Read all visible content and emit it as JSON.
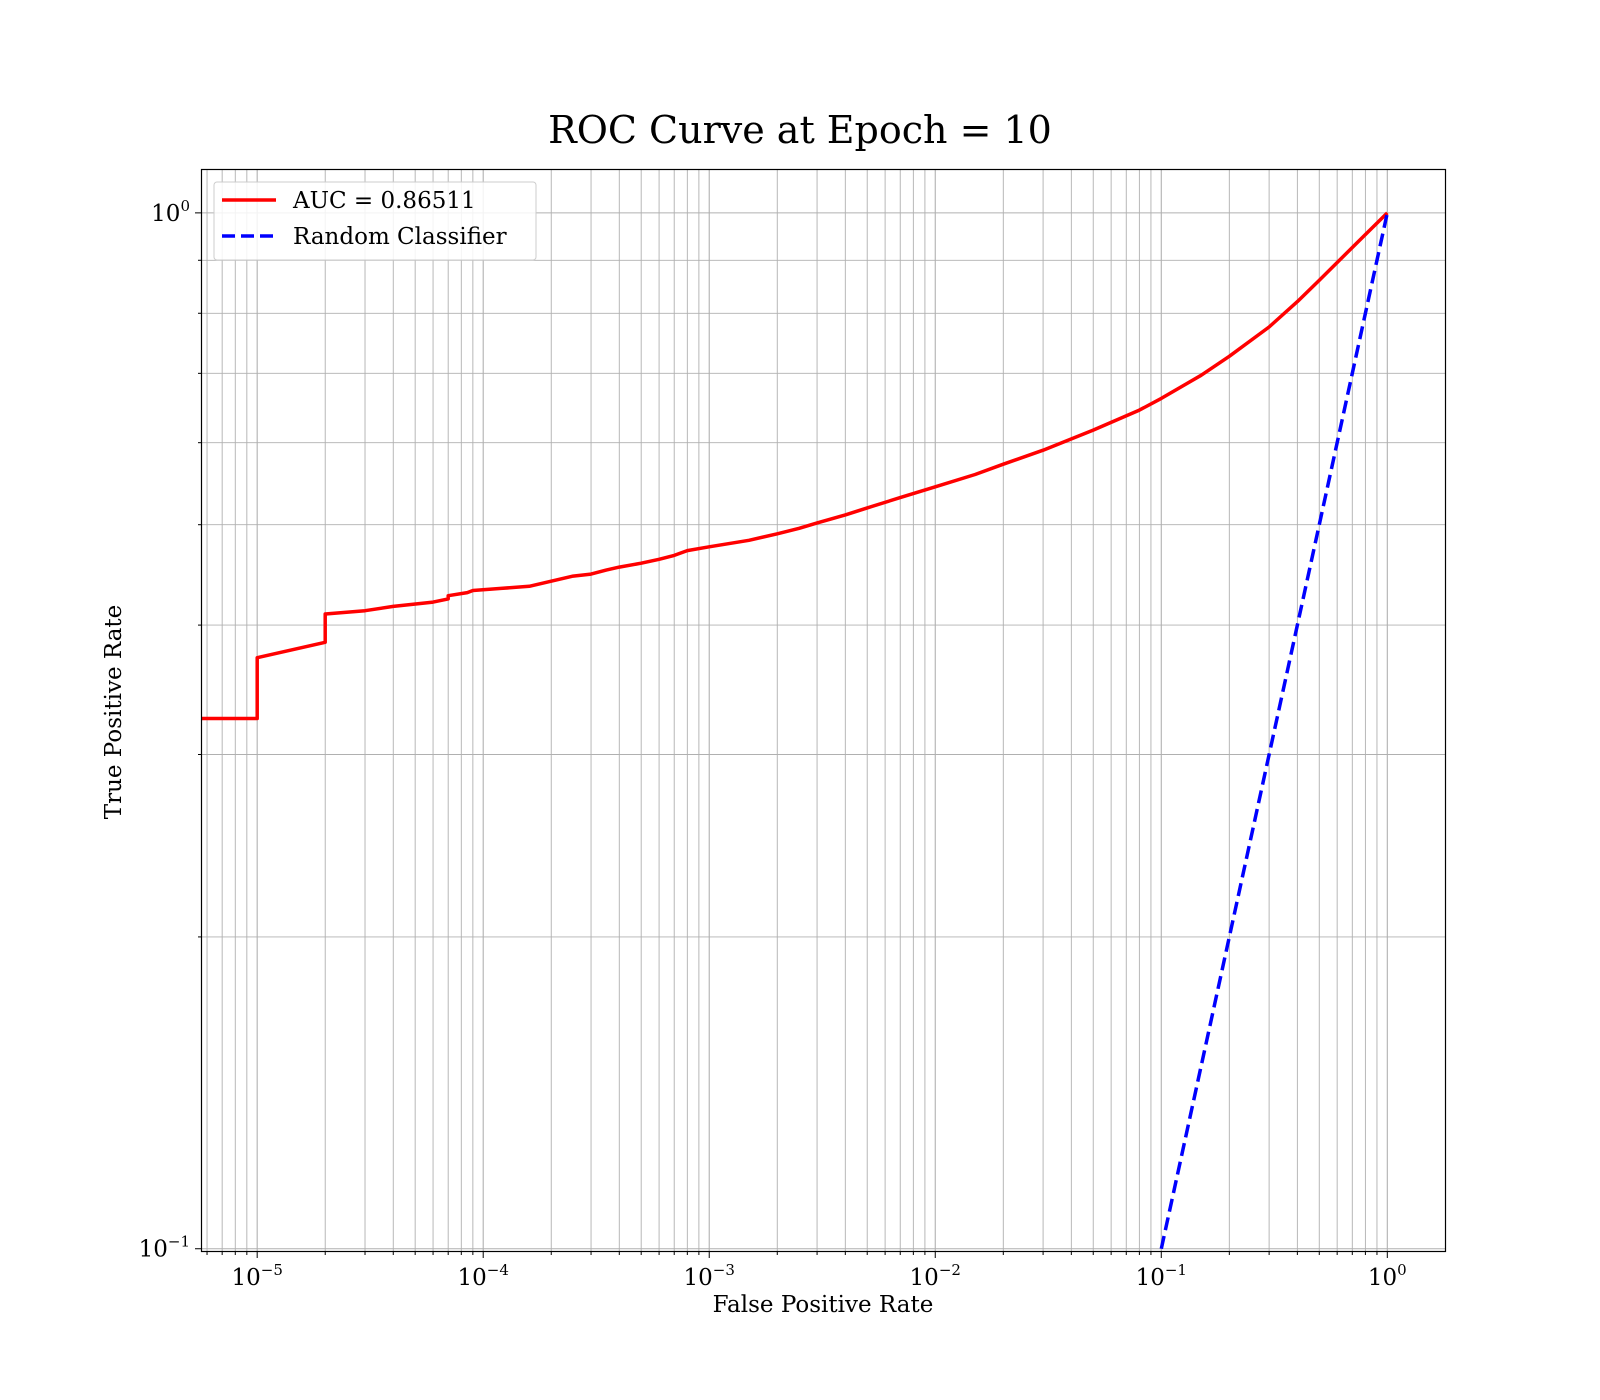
{
  "chart_data": {
    "type": "line",
    "title": "ROC Curve at Epoch = 10",
    "xlabel": "False Positive Rate",
    "ylabel": "True Positive Rate",
    "xscale": "log",
    "yscale": "log",
    "xlim": [
      5.7e-06,
      1.8
    ],
    "ylim": [
      0.0995,
      1.1
    ],
    "grid": true,
    "grid_minor": true,
    "legend_position": "upper-left",
    "x_ticks": [
      {
        "base": "10",
        "exp": "−5",
        "value": 1e-05
      },
      {
        "base": "10",
        "exp": "−4",
        "value": 0.0001
      },
      {
        "base": "10",
        "exp": "−3",
        "value": 0.001
      },
      {
        "base": "10",
        "exp": "−2",
        "value": 0.01
      },
      {
        "base": "10",
        "exp": "−1",
        "value": 0.1
      },
      {
        "base": "10",
        "exp": "0",
        "value": 1
      }
    ],
    "y_ticks": [
      {
        "base": "10",
        "exp": "0",
        "value": 1
      },
      {
        "base": "10",
        "exp": "−1",
        "value": 0.1
      }
    ],
    "series": [
      {
        "name": "AUC = 0.86511",
        "color": "#ff0000",
        "style": "solid",
        "x": [
          5.7e-06,
          1e-05,
          1e-05,
          2e-05,
          2e-05,
          3e-05,
          4e-05,
          6e-05,
          7e-05,
          7e-05,
          8.5e-05,
          9e-05,
          0.00012,
          0.00016,
          0.0002,
          0.00025,
          0.0003,
          0.00035,
          0.0004,
          0.0005,
          0.0006,
          0.0007,
          0.0008,
          0.001,
          0.0015,
          0.002,
          0.0025,
          0.003,
          0.004,
          0.005,
          0.007,
          0.01,
          0.015,
          0.02,
          0.03,
          0.05,
          0.08,
          0.1,
          0.15,
          0.2,
          0.3,
          0.4,
          0.5,
          0.7,
          1.0
        ],
        "y": [
          0.325,
          0.325,
          0.372,
          0.385,
          0.41,
          0.413,
          0.417,
          0.421,
          0.424,
          0.427,
          0.43,
          0.432,
          0.434,
          0.436,
          0.441,
          0.446,
          0.448,
          0.452,
          0.455,
          0.459,
          0.463,
          0.467,
          0.472,
          0.476,
          0.483,
          0.49,
          0.496,
          0.502,
          0.511,
          0.519,
          0.531,
          0.544,
          0.559,
          0.572,
          0.59,
          0.617,
          0.645,
          0.662,
          0.697,
          0.727,
          0.776,
          0.821,
          0.861,
          0.926,
          1.0
        ]
      },
      {
        "name": "Random Classifier",
        "color": "#0000ff",
        "style": "dashed",
        "x": [
          0.1,
          1.0
        ],
        "y": [
          0.1,
          1.0
        ]
      }
    ]
  }
}
